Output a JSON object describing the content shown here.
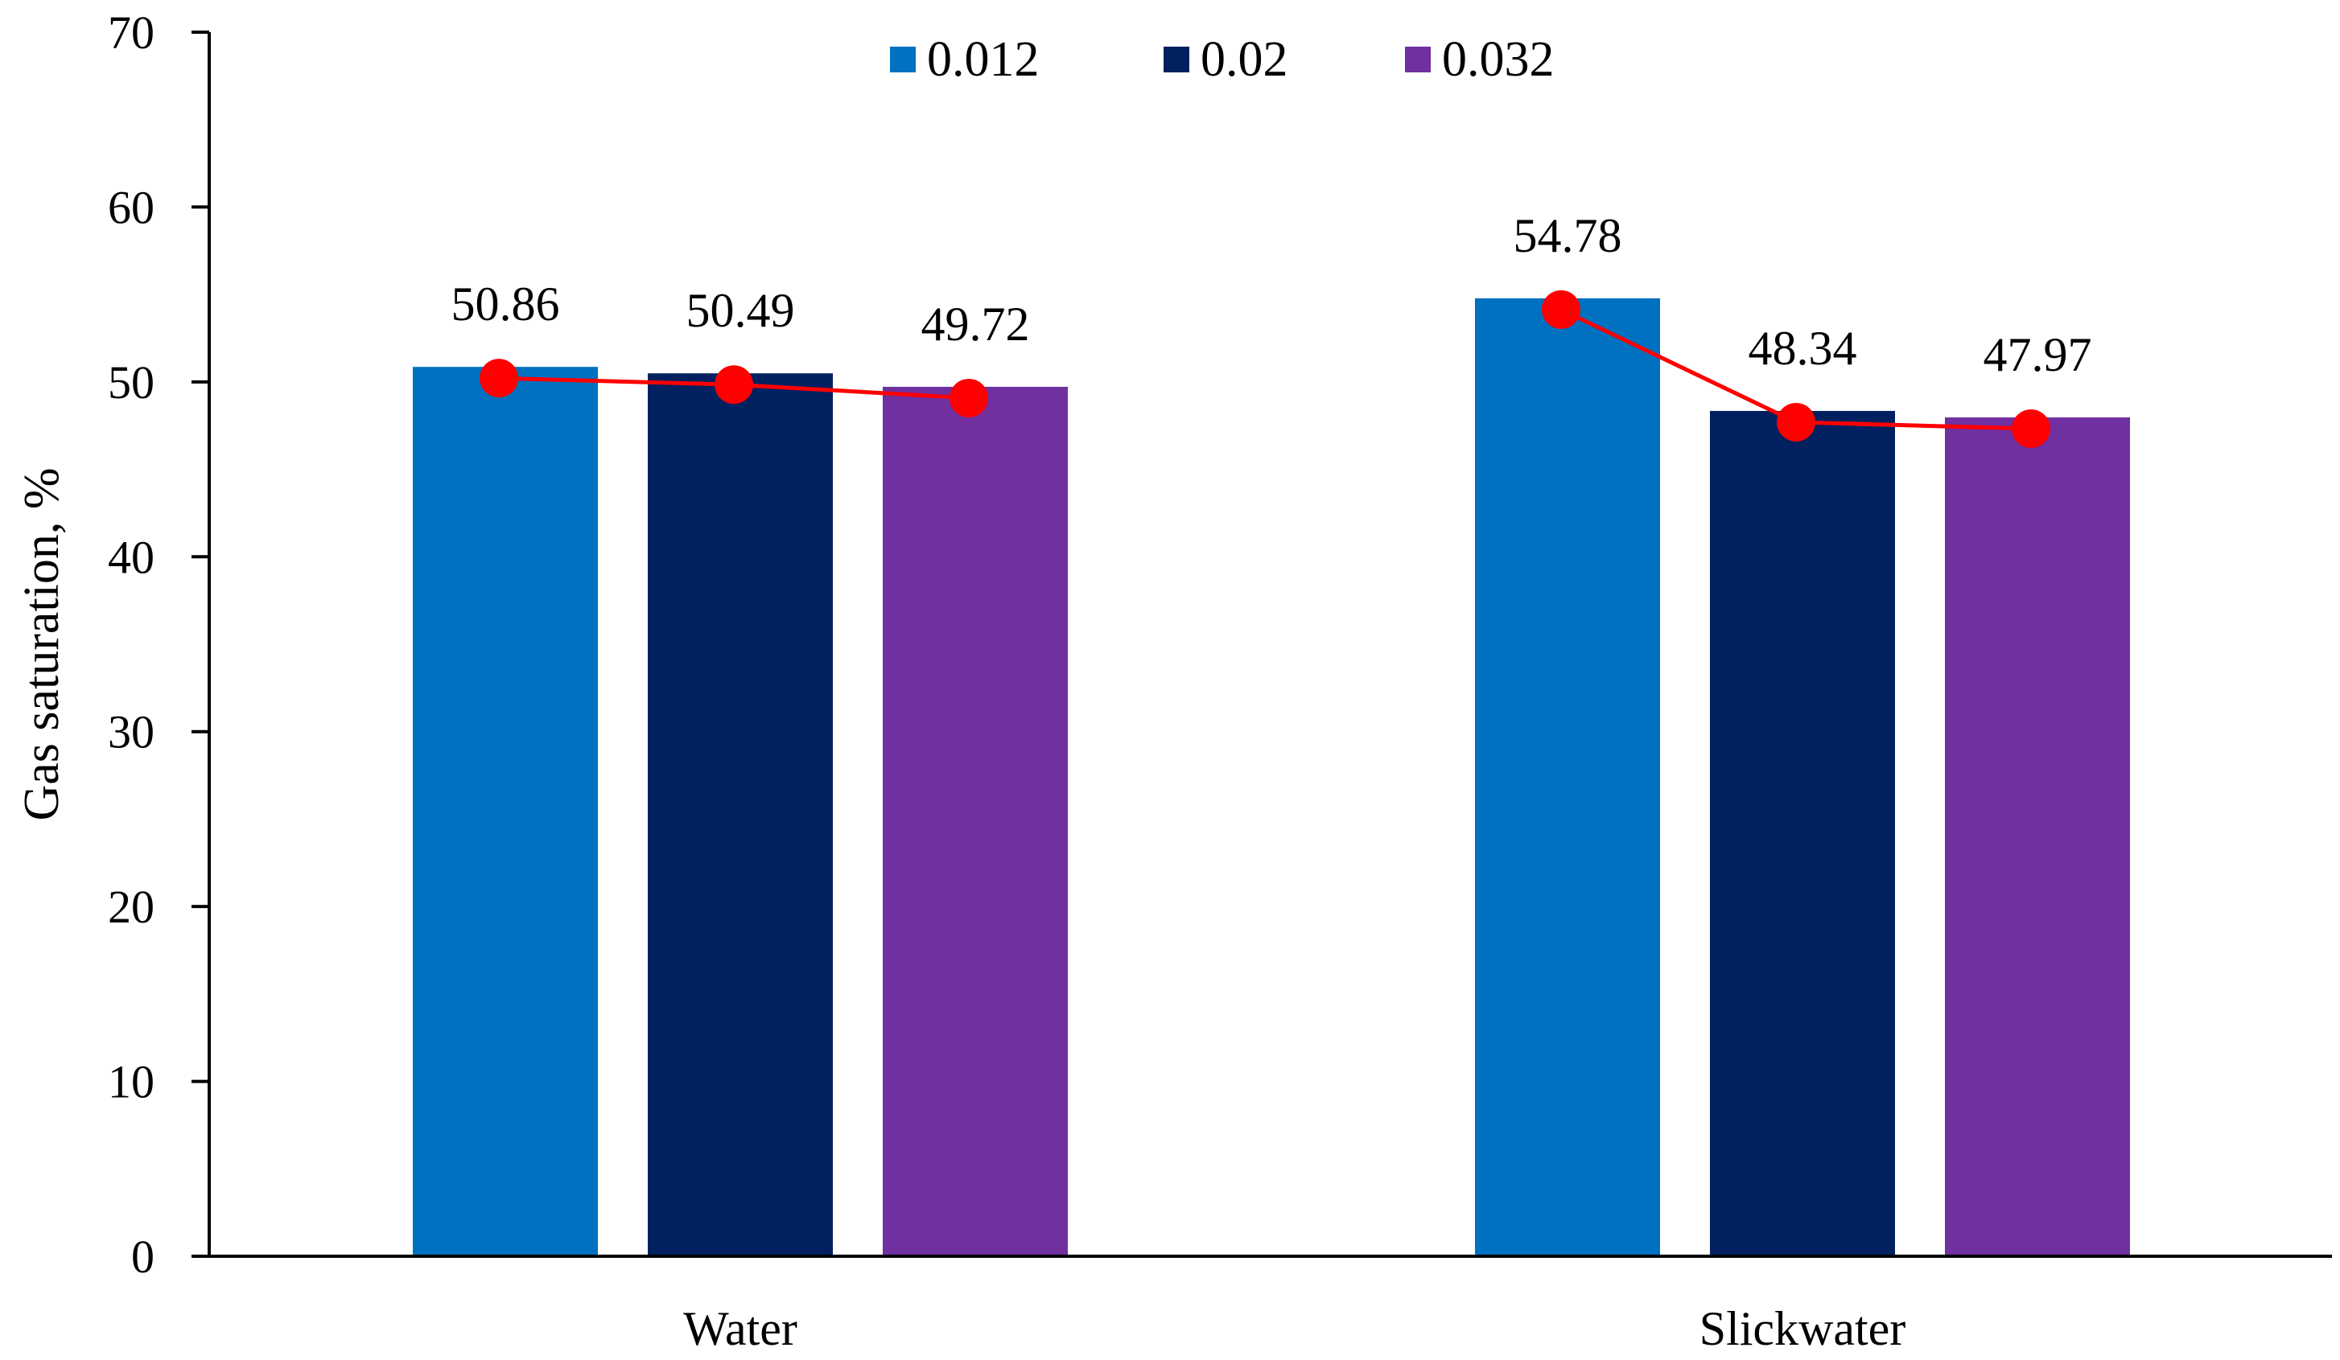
{
  "chart_data": {
    "type": "bar",
    "title": "",
    "xlabel": "",
    "ylabel": "Gas saturation, %",
    "ylim": [
      0,
      70
    ],
    "yticks": [
      0,
      10,
      20,
      30,
      40,
      50,
      60,
      70
    ],
    "ytick_labels": [
      "0",
      "10",
      "20",
      "30",
      "40",
      "50",
      "60",
      "70"
    ],
    "grid": false,
    "legend_position": "top-center",
    "categories": [
      "Water",
      "Slickwater"
    ],
    "series": [
      {
        "name": "0.012",
        "color": "#0070C0",
        "values": [
          50.86,
          54.78
        ]
      },
      {
        "name": "0.02",
        "color": "#002060",
        "values": [
          50.49,
          48.34
        ]
      },
      {
        "name": "0.032",
        "color": "#7030A0",
        "values": [
          49.72,
          47.97
        ]
      }
    ],
    "data_labels": [
      [
        "50.86",
        "50.49",
        "49.72"
      ],
      [
        "54.78",
        "48.34",
        "47.97"
      ]
    ],
    "trend_line": {
      "color": "#FF0000",
      "marker": "circle",
      "values": [
        [
          50.86,
          50.49,
          49.72
        ],
        [
          54.78,
          48.34,
          47.97
        ]
      ]
    }
  }
}
